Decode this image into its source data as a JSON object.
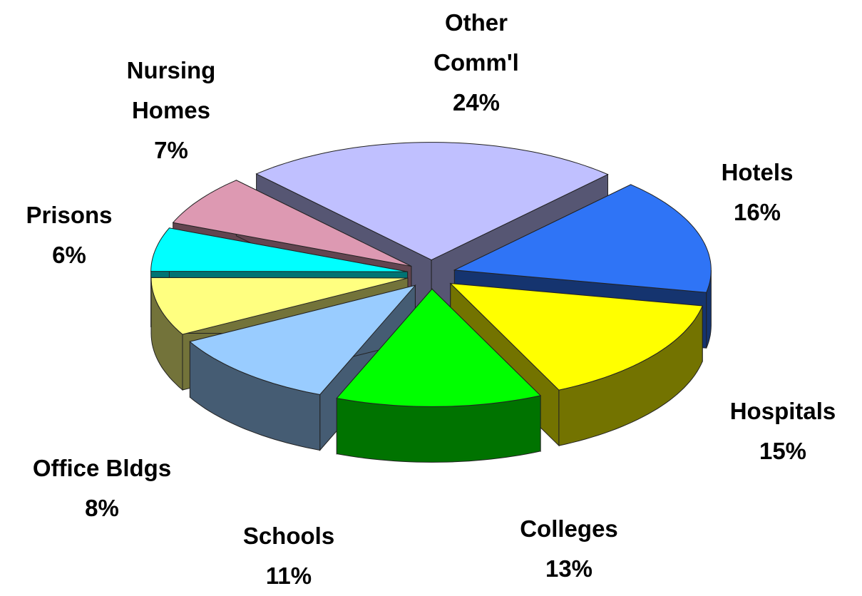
{
  "chart_data": {
    "type": "pie",
    "categories": [
      "Other Comm'l",
      "Hotels",
      "Hospitals",
      "Colleges",
      "Schools",
      "Office Bldgs",
      "Prisons",
      "Nursing Homes"
    ],
    "values": [
      24,
      16,
      15,
      13,
      11,
      8,
      6,
      7
    ],
    "value_labels": [
      "24%",
      "16%",
      "15%",
      "13%",
      "11%",
      "8%",
      "6%",
      "7%"
    ],
    "colors": [
      "#c0c0ff",
      "#2f74f6",
      "#ffff00",
      "#00ff00",
      "#99ccff",
      "#ffff80",
      "#00ffff",
      "#dd99b2"
    ]
  }
}
